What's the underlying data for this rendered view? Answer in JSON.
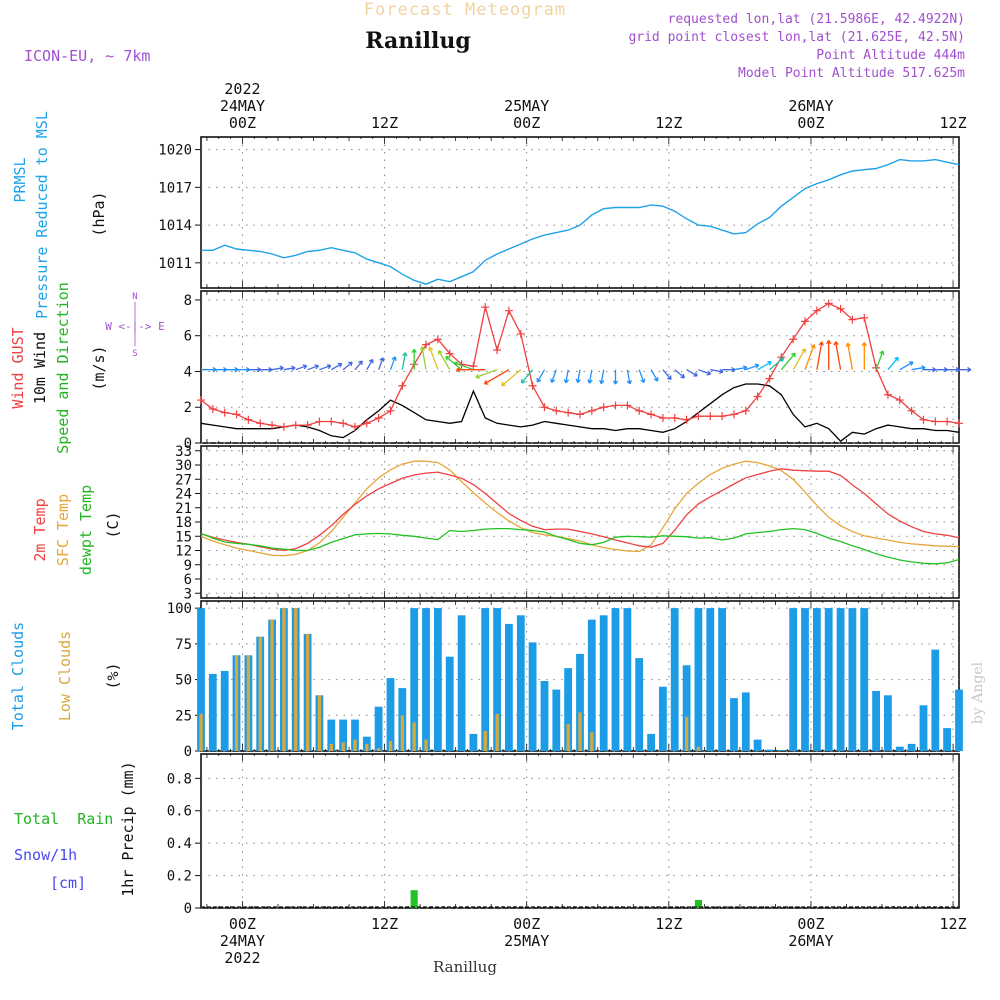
{
  "header": {
    "super_title": "Forecast Meteogram",
    "place": "Ranillug",
    "model": "ICON-EU, ~ 7km",
    "requested": "requested lon,lat (21.5986E, 42.4922N)",
    "grid_point": "grid point closest lon,lat (21.625E, 42.5N)",
    "point_alt": "Point Altitude 444m",
    "model_alt": "Model Point Altitude 517.625m",
    "footer_place": "Ranillug",
    "credit": "by Angel"
  },
  "time_axis": {
    "hours_start": -3.5,
    "hours_end": 60.5,
    "hour_tick_step": 12,
    "top_labels": [
      {
        "hour": 0,
        "lines": [
          "2022",
          "24MAY",
          "00Z"
        ]
      },
      {
        "hour": 12,
        "lines": [
          "12Z"
        ]
      },
      {
        "hour": 24,
        "lines": [
          "25MAY",
          "00Z"
        ]
      },
      {
        "hour": 36,
        "lines": [
          "12Z"
        ]
      },
      {
        "hour": 48,
        "lines": [
          "26MAY",
          "00Z"
        ]
      },
      {
        "hour": 60,
        "lines": [
          "12Z"
        ]
      }
    ],
    "bottom_labels": [
      {
        "hour": 0,
        "lines": [
          "00Z",
          "24MAY",
          "2022"
        ]
      },
      {
        "hour": 12,
        "lines": [
          "12Z"
        ]
      },
      {
        "hour": 24,
        "lines": [
          "00Z",
          "25MAY"
        ]
      },
      {
        "hour": 36,
        "lines": [
          "12Z"
        ]
      },
      {
        "hour": 48,
        "lines": [
          "00Z",
          "26MAY"
        ]
      },
      {
        "hour": 60,
        "lines": [
          "12Z"
        ]
      }
    ]
  },
  "panels": {
    "pressure": {
      "label_lines": [
        "PRMSL",
        "Pressure Reduced to MSL"
      ],
      "unit": "(hPa)",
      "ticks": [
        1011,
        1014,
        1017,
        1020
      ]
    },
    "wind": {
      "label_lines": [
        "Wind GUST",
        "10m Wind",
        "Speed and Direction"
      ],
      "unit": "(m/s)",
      "ticks": [
        0,
        2,
        4,
        6,
        8
      ],
      "compass_n": "N",
      "compass_s": "S",
      "compass_we": "W <-|-> E"
    },
    "temp": {
      "label_lines": [
        "2m Temp",
        "SFC Temp",
        "dewpt Temp"
      ],
      "unit": "(C)",
      "ticks": [
        3,
        6,
        9,
        12,
        15,
        18,
        21,
        24,
        27,
        30,
        33
      ]
    },
    "clouds": {
      "label_lines": [
        "Total Clouds",
        "Low Clouds"
      ],
      "unit": "(%)",
      "ticks": [
        0,
        25,
        50,
        75,
        100
      ]
    },
    "precip": {
      "label_lines": [
        "Total  Rain",
        "Snow/1h",
        "[cm]"
      ],
      "unit": "1hr Precip (mm)",
      "ticks": [
        0,
        0.2,
        0.4,
        0.6,
        0.8
      ]
    }
  },
  "colors": {
    "pressure": "#1ea3e8",
    "gust": "#f04040",
    "wind": "#000000",
    "t2m": "#f04040",
    "sfc": "#e6a63a",
    "dewpt": "#22c222",
    "total_cloud": "#1c9ce6",
    "low_cloud": "#d8a83c",
    "rain": "#22c222",
    "snow": "#4848f0",
    "compass": "#a050d0",
    "header_title": "#f2d2a0",
    "header_meta": "#a050d0"
  },
  "chart_data": [
    {
      "type": "line",
      "title": "PRMSL Pressure Reduced to MSL",
      "ylabel": "(hPa)",
      "x_unit": "hours from 2022-05-24 00Z",
      "ylim": [
        1009,
        1021
      ],
      "x": [
        -3.5,
        -2.5,
        -1.5,
        -0.5,
        0.5,
        1.5,
        2.5,
        3.5,
        4.5,
        5.5,
        6.5,
        7.5,
        8.5,
        9.5,
        10.5,
        11.5,
        12.5,
        13.5,
        14.5,
        15.5,
        16.5,
        17.5,
        18.5,
        19.5,
        20.5,
        21.5,
        22.5,
        23.5,
        24.5,
        25.5,
        26.5,
        27.5,
        28.5,
        29.5,
        30.5,
        31.5,
        32.5,
        33.5,
        34.5,
        35.5,
        36.5,
        37.5,
        38.5,
        39.5,
        40.5,
        41.5,
        42.5,
        43.5,
        44.5,
        45.5,
        46.5,
        47.5,
        48.5,
        49.5,
        50.5,
        51.5,
        52.5,
        53.5,
        54.5,
        55.5,
        56.5,
        57.5,
        58.5,
        59.5,
        60.5
      ],
      "series": [
        {
          "name": "PRMSL",
          "values": [
            1012.0,
            1012.0,
            1012.4,
            1012.1,
            1012.0,
            1011.9,
            1011.7,
            1011.4,
            1011.6,
            1011.9,
            1012.0,
            1012.2,
            1012.0,
            1011.8,
            1011.3,
            1011.0,
            1010.7,
            1010.1,
            1009.6,
            1009.3,
            1009.7,
            1009.5,
            1009.9,
            1010.3,
            1011.2,
            1011.7,
            1012.1,
            1012.5,
            1012.9,
            1013.2,
            1013.4,
            1013.6,
            1014.0,
            1014.8,
            1015.3,
            1015.4,
            1015.4,
            1015.4,
            1015.6,
            1015.5,
            1015.1,
            1014.5,
            1014.0,
            1013.9,
            1013.6,
            1013.3,
            1013.4,
            1014.1,
            1014.6,
            1015.5,
            1016.2,
            1016.9,
            1017.3,
            1017.6,
            1018.0,
            1018.3,
            1018.4,
            1018.5,
            1018.8,
            1019.2,
            1019.1,
            1019.1,
            1019.2,
            1019.0,
            1018.8
          ]
        }
      ]
    },
    {
      "type": "line",
      "title": "Wind GUST / 10m Wind Speed and Direction",
      "ylabel": "(m/s)",
      "x_unit": "hours from 2022-05-24 00Z",
      "ylim": [
        0,
        8.5
      ],
      "x": [
        -3.5,
        -2.5,
        -1.5,
        -0.5,
        0.5,
        1.5,
        2.5,
        3.5,
        4.5,
        5.5,
        6.5,
        7.5,
        8.5,
        9.5,
        10.5,
        11.5,
        12.5,
        13.5,
        14.5,
        15.5,
        16.5,
        17.5,
        18.5,
        19.5,
        20.5,
        21.5,
        22.5,
        23.5,
        24.5,
        25.5,
        26.5,
        27.5,
        28.5,
        29.5,
        30.5,
        31.5,
        32.5,
        33.5,
        34.5,
        35.5,
        36.5,
        37.5,
        38.5,
        39.5,
        40.5,
        41.5,
        42.5,
        43.5,
        44.5,
        45.5,
        46.5,
        47.5,
        48.5,
        49.5,
        50.5,
        51.5,
        52.5,
        53.5,
        54.5,
        55.5,
        56.5,
        57.5,
        58.5,
        59.5,
        60.5
      ],
      "series": [
        {
          "name": "Wind GUST",
          "values": [
            2.4,
            1.9,
            1.7,
            1.6,
            1.3,
            1.1,
            1.0,
            0.9,
            1.0,
            1.0,
            1.2,
            1.2,
            1.1,
            0.9,
            1.1,
            1.4,
            1.8,
            3.2,
            4.4,
            5.5,
            5.8,
            5.0,
            4.4,
            4.3,
            7.6,
            5.2,
            7.4,
            6.1,
            3.2,
            2.0,
            1.8,
            1.7,
            1.6,
            1.8,
            2.0,
            2.1,
            2.1,
            1.8,
            1.6,
            1.4,
            1.4,
            1.3,
            1.5,
            1.5,
            1.5,
            1.6,
            1.8,
            2.6,
            3.6,
            4.8,
            5.8,
            6.8,
            7.4,
            7.8,
            7.5,
            6.9,
            7.0,
            4.2,
            2.7,
            2.4,
            1.8,
            1.3,
            1.2,
            1.2,
            1.1
          ]
        },
        {
          "name": "10m Wind",
          "values": [
            1.1,
            1.0,
            0.9,
            0.8,
            0.8,
            0.8,
            0.8,
            0.9,
            1.0,
            0.9,
            0.7,
            0.4,
            0.3,
            0.7,
            1.3,
            1.8,
            2.4,
            2.1,
            1.7,
            1.3,
            1.2,
            1.1,
            1.2,
            2.9,
            1.4,
            1.1,
            1.0,
            0.9,
            1.0,
            1.2,
            1.1,
            1.0,
            0.9,
            0.8,
            0.8,
            0.7,
            0.8,
            0.8,
            0.7,
            0.6,
            0.8,
            1.2,
            1.7,
            2.2,
            2.7,
            3.1,
            3.3,
            3.3,
            3.2,
            2.7,
            1.6,
            0.9,
            1.1,
            0.8,
            0.1,
            0.6,
            0.5,
            0.8,
            1.0,
            0.9,
            0.8,
            0.8,
            0.7,
            0.7,
            0.6
          ]
        }
      ],
      "wind_barbs": {
        "level": 4.1,
        "directions_deg": [
          270,
          270,
          270,
          270,
          270,
          270,
          260,
          260,
          250,
          250,
          250,
          240,
          230,
          220,
          210,
          200,
          200,
          190,
          180,
          170,
          160,
          150,
          130,
          110,
          90,
          70,
          60,
          50,
          40,
          30,
          20,
          10,
          10,
          10,
          10,
          360,
          350,
          340,
          330,
          320,
          310,
          300,
          290,
          280,
          270,
          260,
          250,
          240,
          230,
          220,
          210,
          200,
          190,
          180,
          170,
          170,
          180,
          200,
          220,
          240,
          260,
          270,
          270,
          270,
          270
        ]
      }
    },
    {
      "type": "line",
      "title": "2m Temp / SFC Temp / dewpt Temp",
      "ylabel": "(C)",
      "x_unit": "hours from 2022-05-24 00Z",
      "ylim": [
        2,
        34
      ],
      "x": [
        -3.5,
        -2.5,
        -1.5,
        -0.5,
        0.5,
        1.5,
        2.5,
        3.5,
        4.5,
        5.5,
        6.5,
        7.5,
        8.5,
        9.5,
        10.5,
        11.5,
        12.5,
        13.5,
        14.5,
        15.5,
        16.5,
        17.5,
        18.5,
        19.5,
        20.5,
        21.5,
        22.5,
        23.5,
        24.5,
        25.5,
        26.5,
        27.5,
        28.5,
        29.5,
        30.5,
        31.5,
        32.5,
        33.5,
        34.5,
        35.5,
        36.5,
        37.5,
        38.5,
        39.5,
        40.5,
        41.5,
        42.5,
        43.5,
        44.5,
        45.5,
        46.5,
        47.5,
        48.5,
        49.5,
        50.5,
        51.5,
        52.5,
        53.5,
        54.5,
        55.5,
        56.5,
        57.5,
        58.5,
        59.5,
        60.5
      ],
      "series": [
        {
          "name": "2m Temp",
          "values": [
            15.5,
            14.8,
            14.2,
            13.7,
            13.3,
            12.8,
            12.3,
            12.0,
            12.4,
            13.5,
            15.2,
            17.2,
            19.6,
            21.7,
            23.5,
            25.0,
            26.1,
            27.2,
            27.9,
            28.3,
            28.5,
            27.9,
            27.2,
            25.9,
            24.0,
            21.9,
            19.8,
            18.3,
            17.1,
            16.4,
            16.5,
            16.5,
            16.0,
            15.5,
            14.9,
            14.2,
            13.6,
            13.0,
            12.7,
            13.5,
            16.3,
            19.5,
            21.8,
            23.3,
            24.6,
            26.0,
            27.3,
            28.0,
            28.7,
            29.2,
            28.9,
            28.8,
            28.7,
            28.7,
            27.8,
            25.8,
            24.0,
            21.8,
            19.7,
            18.2,
            17.0,
            16.0,
            15.5,
            15.2,
            14.7
          ]
        },
        {
          "name": "SFC Temp",
          "values": [
            15.0,
            14.0,
            13.2,
            12.5,
            12.0,
            11.5,
            11.0,
            10.9,
            11.2,
            12.0,
            13.6,
            16.0,
            19.0,
            22.0,
            25.0,
            27.3,
            29.0,
            30.2,
            30.8,
            30.8,
            30.5,
            29.0,
            26.5,
            24.2,
            22.0,
            20.0,
            18.2,
            16.8,
            15.8,
            15.3,
            15.0,
            14.5,
            14.0,
            13.2,
            12.6,
            12.2,
            11.9,
            11.8,
            13.2,
            16.8,
            20.8,
            24.0,
            26.2,
            28.0,
            29.3,
            30.2,
            30.8,
            30.5,
            29.8,
            28.8,
            27.0,
            24.3,
            21.5,
            19.0,
            17.2,
            16.0,
            15.1,
            14.6,
            14.2,
            13.7,
            13.4,
            13.2,
            13.0,
            12.9,
            12.8
          ]
        },
        {
          "name": "dewpt Temp",
          "values": [
            15.6,
            14.6,
            13.8,
            13.5,
            13.3,
            13.0,
            12.5,
            12.3,
            12.0,
            12.0,
            12.7,
            13.7,
            14.5,
            15.3,
            15.5,
            15.6,
            15.5,
            15.2,
            15.0,
            14.6,
            14.3,
            16.2,
            16.0,
            16.2,
            16.5,
            16.6,
            16.6,
            16.4,
            16.2,
            15.9,
            15.0,
            14.3,
            13.5,
            13.2,
            13.7,
            14.8,
            15.0,
            14.9,
            14.8,
            15.1,
            15.0,
            14.9,
            14.6,
            14.7,
            14.2,
            14.6,
            15.5,
            15.8,
            16.0,
            16.4,
            16.6,
            16.4,
            15.6,
            14.6,
            13.9,
            13.0,
            12.2,
            11.3,
            10.6,
            10.0,
            9.6,
            9.3,
            9.2,
            9.4,
            10.1
          ]
        }
      ]
    },
    {
      "type": "bar",
      "title": "Total Clouds / Low Clouds",
      "ylabel": "(%)",
      "x_unit": "hours from 2022-05-24 00Z",
      "ylim": [
        0,
        105
      ],
      "x": [
        -3.5,
        -2.5,
        -1.5,
        -0.5,
        0.5,
        1.5,
        2.5,
        3.5,
        4.5,
        5.5,
        6.5,
        7.5,
        8.5,
        9.5,
        10.5,
        11.5,
        12.5,
        13.5,
        14.5,
        15.5,
        16.5,
        17.5,
        18.5,
        19.5,
        20.5,
        21.5,
        22.5,
        23.5,
        24.5,
        25.5,
        26.5,
        27.5,
        28.5,
        29.5,
        30.5,
        31.5,
        32.5,
        33.5,
        34.5,
        35.5,
        36.5,
        37.5,
        38.5,
        39.5,
        40.5,
        41.5,
        42.5,
        43.5,
        44.5,
        45.5,
        46.5,
        47.5,
        48.5,
        49.5,
        50.5,
        51.5,
        52.5,
        53.5,
        54.5,
        55.5,
        56.5,
        57.5,
        58.5,
        59.5,
        60.5
      ],
      "series": [
        {
          "name": "Total Clouds",
          "values": [
            100,
            54,
            56,
            67,
            67,
            80,
            92,
            100,
            100,
            82,
            39,
            22,
            22,
            22,
            10,
            31,
            51,
            44,
            100,
            100,
            100,
            66,
            95,
            12,
            100,
            100,
            89,
            95,
            76,
            49,
            43,
            58,
            68,
            92,
            95,
            100,
            100,
            65,
            12,
            45,
            100,
            60,
            100,
            100,
            100,
            37,
            41,
            8,
            1,
            0,
            100,
            100,
            100,
            100,
            100,
            100,
            100,
            42,
            39,
            3,
            5,
            32,
            71,
            16,
            43
          ]
        },
        {
          "name": "Low Clouds",
          "values": [
            26,
            0,
            0,
            67,
            67,
            80,
            92,
            100,
            100,
            82,
            39,
            5,
            6,
            8,
            5,
            2,
            7,
            25,
            20,
            8,
            0,
            0,
            0,
            0,
            14,
            26,
            0,
            0,
            0,
            0,
            0,
            19,
            27,
            13,
            0,
            0,
            0,
            0,
            0,
            0,
            0,
            24,
            3,
            0,
            0,
            0,
            0,
            0,
            0,
            0,
            0,
            0,
            0,
            0,
            0,
            0,
            0,
            0,
            0,
            0,
            0,
            0,
            0,
            0,
            0
          ]
        }
      ]
    },
    {
      "type": "bar",
      "title": "1hr Precip",
      "ylabel": "1hr Precip (mm)",
      "x_unit": "hours from 2022-05-24 00Z",
      "ylim": [
        0,
        0.95
      ],
      "x": [
        14.5,
        38.5
      ],
      "series": [
        {
          "name": "Total Rain",
          "values": [
            0.11,
            0.05
          ]
        }
      ]
    }
  ]
}
